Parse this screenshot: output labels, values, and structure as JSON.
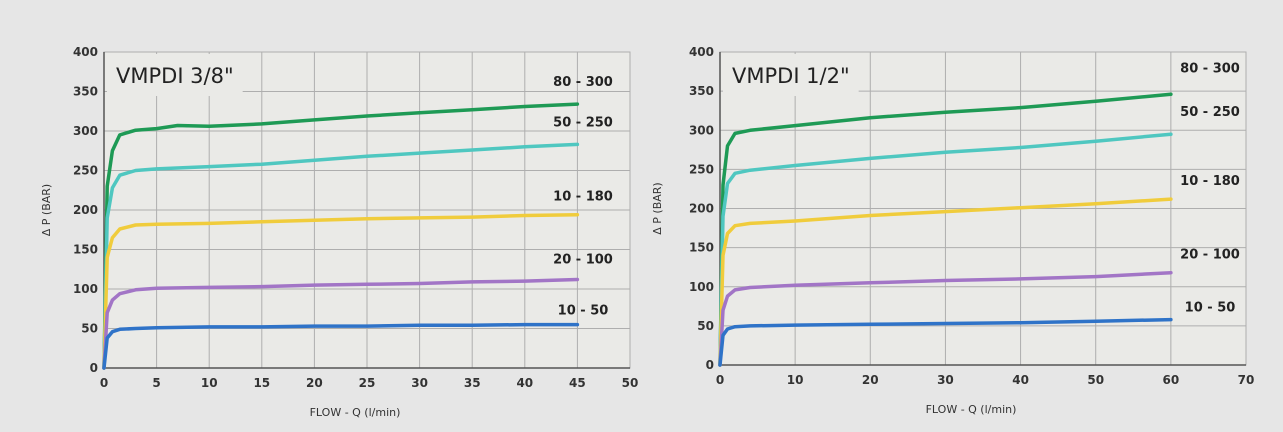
{
  "colors": {
    "background": "#e6e6e6",
    "plot_area": "#eaeae7",
    "grid": "#aeaeae",
    "axis": "#555555",
    "text": "#333333",
    "c80_300": "#1e9a55",
    "c50_250": "#4fc7c0",
    "c10_180": "#f0cc3c",
    "c20_100": "#a275c6",
    "c10_50": "#2f73c8"
  },
  "chart_data": [
    {
      "type": "line",
      "title": "VMPDI 3/8\"",
      "xlabel": "FLOW - Q (l/min)",
      "ylabel": "Δ P (BAR)",
      "xlim": [
        0,
        50
      ],
      "ylim": [
        0,
        400
      ],
      "xticks": [
        "0",
        "5",
        "10",
        "15",
        "20",
        "25",
        "30",
        "35",
        "40",
        "45",
        "50"
      ],
      "yticks": [
        "0",
        "50",
        "100",
        "150",
        "200",
        "250",
        "300",
        "350",
        "400"
      ],
      "grid": true,
      "series": [
        {
          "name": "80 - 300",
          "color": "#1e9a55",
          "x": [
            0,
            0.3,
            0.8,
            1.5,
            3,
            5,
            7,
            10,
            15,
            20,
            25,
            30,
            35,
            40,
            45
          ],
          "y": [
            0,
            230,
            275,
            295,
            301,
            303,
            307,
            306,
            309,
            314,
            319,
            323,
            327,
            331,
            334
          ]
        },
        {
          "name": "50 - 250",
          "color": "#4fc7c0",
          "x": [
            0,
            0.3,
            0.8,
            1.5,
            3,
            5,
            10,
            15,
            20,
            25,
            30,
            35,
            40,
            45
          ],
          "y": [
            0,
            190,
            228,
            244,
            250,
            252,
            255,
            258,
            263,
            268,
            272,
            276,
            280,
            283
          ]
        },
        {
          "name": "10 - 180",
          "color": "#f0cc3c",
          "x": [
            0,
            0.3,
            0.8,
            1.5,
            3,
            5,
            10,
            15,
            20,
            25,
            30,
            35,
            40,
            45
          ],
          "y": [
            0,
            140,
            165,
            176,
            181,
            182,
            183,
            185,
            187,
            189,
            190,
            191,
            193,
            194
          ]
        },
        {
          "name": "20 - 100",
          "color": "#a275c6",
          "x": [
            0,
            0.3,
            0.8,
            1.5,
            3,
            5,
            10,
            15,
            20,
            25,
            30,
            35,
            40,
            45
          ],
          "y": [
            0,
            70,
            86,
            94,
            99,
            101,
            102,
            103,
            105,
            106,
            107,
            109,
            110,
            112
          ]
        },
        {
          "name": "10 - 50",
          "color": "#2f73c8",
          "x": [
            0,
            0.3,
            0.8,
            1.5,
            3,
            5,
            10,
            15,
            20,
            25,
            30,
            35,
            40,
            45
          ],
          "y": [
            0,
            38,
            46,
            49,
            50,
            51,
            52,
            52,
            53,
            53,
            54,
            54,
            55,
            55
          ]
        }
      ]
    },
    {
      "type": "line",
      "title": "VMPDI 1/2\"",
      "xlabel": "FLOW - Q (l/min)",
      "ylabel": "Δ P (BAR)",
      "xlim": [
        0,
        70
      ],
      "ylim": [
        0,
        400
      ],
      "xticks": [
        "0",
        "10",
        "20",
        "30",
        "40",
        "50",
        "60",
        "70"
      ],
      "yticks": [
        "0",
        "50",
        "100",
        "150",
        "200",
        "250",
        "300",
        "350",
        "400"
      ],
      "grid": true,
      "series": [
        {
          "name": "80 - 300",
          "color": "#1e9a55",
          "x": [
            0,
            0.4,
            1,
            2,
            4,
            10,
            20,
            30,
            40,
            50,
            60
          ],
          "y": [
            0,
            230,
            280,
            296,
            300,
            306,
            316,
            323,
            329,
            337,
            346
          ]
        },
        {
          "name": "50 - 250",
          "color": "#4fc7c0",
          "x": [
            0,
            0.4,
            1,
            2,
            4,
            10,
            20,
            30,
            40,
            50,
            60
          ],
          "y": [
            0,
            190,
            232,
            245,
            249,
            255,
            264,
            272,
            278,
            286,
            295
          ]
        },
        {
          "name": "10 - 180",
          "color": "#f0cc3c",
          "x": [
            0,
            0.4,
            1,
            2,
            4,
            10,
            20,
            30,
            40,
            50,
            60
          ],
          "y": [
            0,
            140,
            168,
            178,
            181,
            184,
            191,
            196,
            201,
            206,
            212
          ]
        },
        {
          "name": "20 - 100",
          "color": "#a275c6",
          "x": [
            0,
            0.4,
            1,
            2,
            4,
            10,
            20,
            30,
            40,
            50,
            60
          ],
          "y": [
            0,
            70,
            88,
            96,
            99,
            102,
            105,
            108,
            110,
            113,
            118
          ]
        },
        {
          "name": "10 - 50",
          "color": "#2f73c8",
          "x": [
            0,
            0.4,
            1,
            2,
            4,
            10,
            20,
            30,
            40,
            50,
            60
          ],
          "y": [
            0,
            38,
            46,
            49,
            50,
            51,
            52,
            53,
            54,
            56,
            58
          ]
        }
      ]
    }
  ]
}
